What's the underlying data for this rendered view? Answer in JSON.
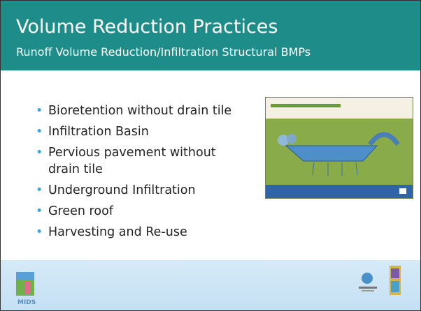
{
  "header": {
    "title": "Volume Reduction Practices",
    "subtitle": "Runoff Volume Reduction/Infiltration Structural BMPs"
  },
  "bullets": [
    "Bioretention without drain tile",
    "Infiltration Basin",
    "Pervious pavement without drain tile",
    "Underground Infiltration",
    "Green roof",
    "Harvesting and Re-use"
  ],
  "footer": {
    "logo_text": "MIDS"
  }
}
